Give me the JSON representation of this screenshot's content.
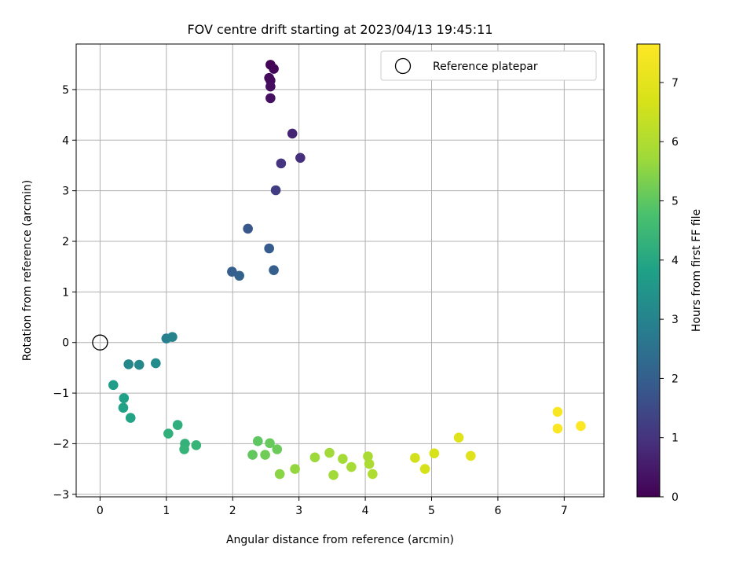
{
  "chart_data": {
    "type": "scatter",
    "title": "FOV centre drift starting at 2023/04/13 19:45:11",
    "xlabel": "Angular distance from reference (arcmin)",
    "ylabel": "Rotation from reference (arcmin)",
    "xlim": [
      -0.36,
      7.6
    ],
    "ylim": [
      -3.05,
      5.9
    ],
    "xticks": [
      0,
      1,
      2,
      3,
      4,
      5,
      6,
      7
    ],
    "yticks": [
      -3,
      -2,
      -1,
      0,
      1,
      2,
      3,
      4,
      5
    ],
    "grid": true,
    "colormap": "viridis",
    "colorbar": {
      "label": "Hours from first FF file",
      "range": [
        0,
        7.65
      ],
      "ticks": [
        0,
        1,
        2,
        3,
        4,
        5,
        6,
        7
      ]
    },
    "legend": {
      "position": "top-right",
      "entries": [
        "Reference platepar"
      ]
    },
    "reference_point": {
      "x": 0,
      "y": 0
    },
    "points": [
      {
        "x": 2.57,
        "y": 5.49,
        "c": 0.05
      },
      {
        "x": 2.62,
        "y": 5.41,
        "c": 0.1
      },
      {
        "x": 2.55,
        "y": 5.23,
        "c": 0.15
      },
      {
        "x": 2.57,
        "y": 5.18,
        "c": 0.2
      },
      {
        "x": 2.57,
        "y": 5.06,
        "c": 0.25
      },
      {
        "x": 2.57,
        "y": 4.83,
        "c": 0.3
      },
      {
        "x": 2.9,
        "y": 4.13,
        "c": 0.7
      },
      {
        "x": 3.02,
        "y": 3.65,
        "c": 0.9
      },
      {
        "x": 2.73,
        "y": 3.54,
        "c": 1.0
      },
      {
        "x": 2.65,
        "y": 3.01,
        "c": 1.2
      },
      {
        "x": 2.23,
        "y": 2.25,
        "c": 1.8
      },
      {
        "x": 2.55,
        "y": 1.86,
        "c": 1.9
      },
      {
        "x": 1.99,
        "y": 1.4,
        "c": 2.0
      },
      {
        "x": 2.1,
        "y": 1.32,
        "c": 2.1
      },
      {
        "x": 2.62,
        "y": 1.43,
        "c": 2.0
      },
      {
        "x": 1.0,
        "y": 0.08,
        "c": 2.9
      },
      {
        "x": 1.09,
        "y": 0.11,
        "c": 2.95
      },
      {
        "x": 0.43,
        "y": -0.43,
        "c": 3.1
      },
      {
        "x": 0.59,
        "y": -0.44,
        "c": 3.15
      },
      {
        "x": 0.84,
        "y": -0.41,
        "c": 3.2
      },
      {
        "x": 0.2,
        "y": -0.84,
        "c": 3.7
      },
      {
        "x": 0.36,
        "y": -1.1,
        "c": 3.8
      },
      {
        "x": 0.35,
        "y": -1.29,
        "c": 3.85
      },
      {
        "x": 0.46,
        "y": -1.49,
        "c": 3.9
      },
      {
        "x": 1.17,
        "y": -1.63,
        "c": 4.2
      },
      {
        "x": 1.03,
        "y": -1.8,
        "c": 4.25
      },
      {
        "x": 1.28,
        "y": -2.0,
        "c": 4.3
      },
      {
        "x": 1.27,
        "y": -2.11,
        "c": 4.35
      },
      {
        "x": 1.45,
        "y": -2.03,
        "c": 4.4
      },
      {
        "x": 2.38,
        "y": -1.95,
        "c": 5.0
      },
      {
        "x": 2.56,
        "y": -1.99,
        "c": 5.1
      },
      {
        "x": 2.67,
        "y": -2.11,
        "c": 5.15
      },
      {
        "x": 2.3,
        "y": -2.22,
        "c": 5.05
      },
      {
        "x": 2.49,
        "y": -2.22,
        "c": 5.2
      },
      {
        "x": 2.71,
        "y": -2.6,
        "c": 5.5
      },
      {
        "x": 2.94,
        "y": -2.5,
        "c": 5.6
      },
      {
        "x": 3.24,
        "y": -2.27,
        "c": 5.7
      },
      {
        "x": 3.46,
        "y": -2.18,
        "c": 5.75
      },
      {
        "x": 3.66,
        "y": -2.3,
        "c": 5.8
      },
      {
        "x": 3.52,
        "y": -2.62,
        "c": 5.75
      },
      {
        "x": 3.79,
        "y": -2.46,
        "c": 5.85
      },
      {
        "x": 4.04,
        "y": -2.25,
        "c": 5.9
      },
      {
        "x": 4.06,
        "y": -2.4,
        "c": 5.95
      },
      {
        "x": 4.11,
        "y": -2.6,
        "c": 6.0
      },
      {
        "x": 4.75,
        "y": -2.28,
        "c": 6.6
      },
      {
        "x": 4.9,
        "y": -2.5,
        "c": 6.65
      },
      {
        "x": 5.04,
        "y": -2.19,
        "c": 6.7
      },
      {
        "x": 5.41,
        "y": -1.88,
        "c": 6.85
      },
      {
        "x": 5.59,
        "y": -2.24,
        "c": 6.9
      },
      {
        "x": 6.9,
        "y": -1.37,
        "c": 7.5
      },
      {
        "x": 6.9,
        "y": -1.7,
        "c": 7.55
      },
      {
        "x": 7.25,
        "y": -1.65,
        "c": 7.6
      }
    ]
  }
}
